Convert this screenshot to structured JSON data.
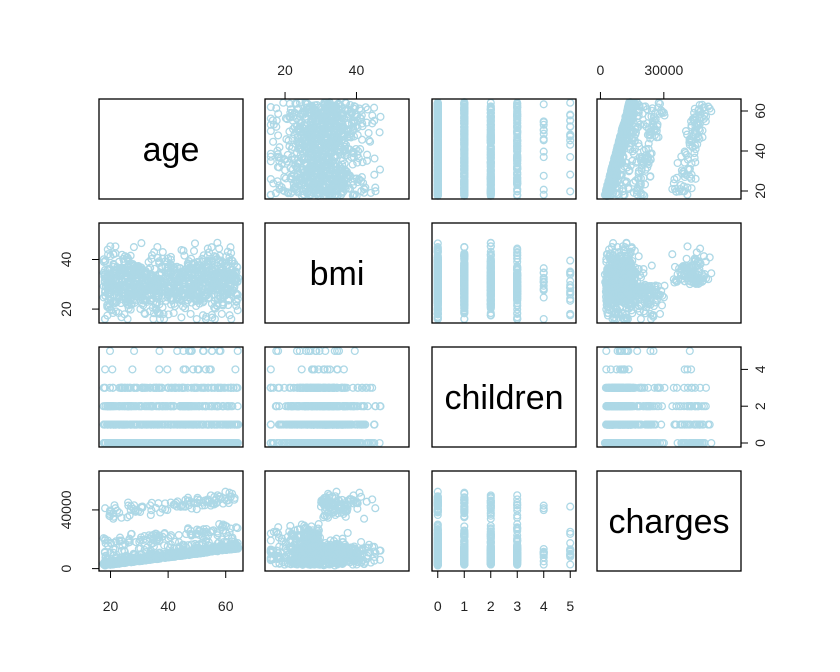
{
  "chart_data": {
    "type": "scatter",
    "subtype": "scatterplot-matrix",
    "variables": [
      "age",
      "bmi",
      "children",
      "charges"
    ],
    "point_color": "#ADD8E6",
    "point_shape": "open-circle",
    "ranges": {
      "age": [
        18,
        64
      ],
      "bmi": [
        16,
        53.1
      ],
      "children": [
        0,
        5
      ],
      "charges": [
        1100,
        63800
      ]
    },
    "axes": {
      "age": {
        "ticks": [
          20,
          40,
          60
        ],
        "labels": [
          "20",
          "40",
          "60"
        ]
      },
      "bmi": {
        "ticks": [
          20,
          40
        ],
        "labels": [
          "20",
          "40"
        ]
      },
      "children": {
        "ticks": [
          0,
          1,
          2,
          3,
          4,
          5
        ],
        "labels": [
          "0",
          "1",
          "2",
          "3",
          "4",
          "5"
        ],
        "alt_ticks": [
          0,
          2,
          4
        ],
        "alt_labels": [
          "0",
          "2",
          "4"
        ]
      },
      "charges": {
        "ticks": [
          0,
          30000
        ],
        "labels": [
          "0",
          "30000"
        ],
        "alt_ticks": [
          0,
          40000
        ],
        "alt_labels": [
          "0",
          "40000"
        ]
      }
    },
    "axis_placement": {
      "top": [
        "bmi",
        "charges"
      ],
      "bottom": [
        "age",
        "children"
      ],
      "left": [
        "bmi",
        "charges"
      ],
      "right": [
        "age",
        "children"
      ]
    },
    "grid": false,
    "legend": "none"
  }
}
